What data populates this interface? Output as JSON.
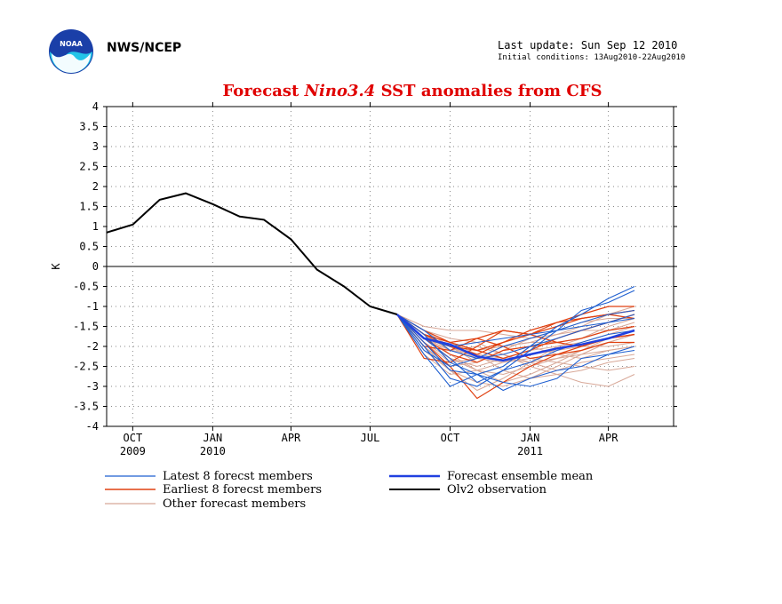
{
  "header": {
    "agency": "NWS/NCEP",
    "last_update": "Last update: Sun Sep 12 2010",
    "initial_conditions": "Initial conditions: 13Aug2010-22Aug2010"
  },
  "logo": {
    "icon": "noaa-logo-icon",
    "text": "NOAA"
  },
  "colors": {
    "title": "#e00000",
    "latest": "#1f5fd0",
    "earliest": "#e04010",
    "other": "#d8a898",
    "mean": "#2040e0",
    "observation": "#000000"
  },
  "chart_data": {
    "type": "line",
    "title_parts": [
      "Forecast ",
      "Nino3.4",
      " SST anomalies from CFS"
    ],
    "xlabel": "",
    "ylabel": "K",
    "ylim": [
      -4,
      4
    ],
    "yticks": [
      4,
      3.5,
      3,
      2.5,
      2,
      1.5,
      1,
      0.5,
      0,
      -0.5,
      -1,
      -1.5,
      -2,
      -2.5,
      -3,
      -3.5,
      -4
    ],
    "ytick_labels": [
      "4",
      "3.5",
      "3",
      "2.5",
      "2",
      "1.5",
      "1",
      "0.5",
      "0",
      "-0.5",
      "-1",
      "-1.5",
      "-2",
      "-2.5",
      "-3",
      "-3.5",
      "-4"
    ],
    "xlim": [
      "2009-09-01",
      "2011-06-15"
    ],
    "xticks": [
      {
        "x": "2009-10-01",
        "label": "OCT",
        "sublabel": "2009"
      },
      {
        "x": "2010-01-01",
        "label": "JAN",
        "sublabel": "2010"
      },
      {
        "x": "2010-04-01",
        "label": "APR",
        "sublabel": ""
      },
      {
        "x": "2010-07-01",
        "label": "JUL",
        "sublabel": ""
      },
      {
        "x": "2010-10-01",
        "label": "OCT",
        "sublabel": ""
      },
      {
        "x": "2011-01-01",
        "label": "JAN",
        "sublabel": "2011"
      },
      {
        "x": "2011-04-01",
        "label": "APR",
        "sublabel": ""
      }
    ],
    "grid": true,
    "legend_position": "below",
    "forecast_x": [
      "2010-08-01",
      "2010-09-01",
      "2010-10-01",
      "2010-11-01",
      "2010-12-01",
      "2011-01-01",
      "2011-02-01",
      "2011-03-01",
      "2011-04-01",
      "2011-05-01"
    ],
    "series": [
      {
        "name": "Olv2 observation",
        "role": "observation",
        "x": [
          "2009-09-01",
          "2009-10-01",
          "2009-11-01",
          "2009-12-01",
          "2010-01-01",
          "2010-02-01",
          "2010-03-01",
          "2010-04-01",
          "2010-05-01",
          "2010-06-01",
          "2010-07-01",
          "2010-08-01"
        ],
        "values": [
          0.85,
          1.05,
          1.67,
          1.83,
          1.56,
          1.25,
          1.17,
          0.68,
          -0.08,
          -0.5,
          -1.0,
          -1.2
        ]
      },
      {
        "name": "Forecast ensemble mean",
        "role": "mean",
        "values": [
          -1.2,
          -1.8,
          -1.95,
          -2.25,
          -2.35,
          -2.2,
          -2.05,
          -1.95,
          -1.8,
          -1.6
        ]
      },
      {
        "name": "Latest 8 forecst members",
        "role": "latest",
        "members": [
          [
            -1.2,
            -1.7,
            -2.4,
            -2.7,
            -2.5,
            -2.0,
            -1.5,
            -1.2,
            -0.8,
            -0.5
          ],
          [
            -1.2,
            -2.0,
            -2.8,
            -3.0,
            -2.6,
            -2.1,
            -1.6,
            -1.1,
            -0.9,
            -0.6
          ],
          [
            -1.2,
            -1.6,
            -2.1,
            -2.3,
            -2.0,
            -1.8,
            -1.6,
            -1.4,
            -1.2,
            -1.1
          ],
          [
            -1.2,
            -2.2,
            -3.0,
            -2.7,
            -3.1,
            -2.8,
            -2.6,
            -2.5,
            -2.2,
            -2.0
          ],
          [
            -1.2,
            -1.9,
            -2.6,
            -2.7,
            -2.9,
            -3.0,
            -2.8,
            -2.3,
            -2.2,
            -2.1
          ],
          [
            -1.2,
            -1.8,
            -2.3,
            -2.9,
            -2.6,
            -2.4,
            -2.1,
            -1.9,
            -1.7,
            -1.6
          ],
          [
            -1.2,
            -2.1,
            -2.5,
            -2.3,
            -2.2,
            -2.0,
            -1.8,
            -1.6,
            -1.4,
            -1.3
          ],
          [
            -1.2,
            -1.8,
            -2.0,
            -1.9,
            -1.8,
            -1.7,
            -1.6,
            -1.5,
            -1.4,
            -1.2
          ]
        ]
      },
      {
        "name": "Earliest 8 forecst members",
        "role": "earliest",
        "members": [
          [
            -1.2,
            -1.8,
            -2.0,
            -2.2,
            -1.9,
            -1.7,
            -1.4,
            -1.2,
            -1.0,
            -1.0
          ],
          [
            -1.2,
            -1.9,
            -2.5,
            -3.3,
            -2.9,
            -2.5,
            -2.2,
            -2.0,
            -1.8,
            -1.7
          ],
          [
            -1.2,
            -2.3,
            -2.4,
            -2.0,
            -1.6,
            -1.7,
            -1.5,
            -1.3,
            -1.2,
            -1.1
          ],
          [
            -1.2,
            -1.7,
            -1.9,
            -1.8,
            -1.6,
            -1.7,
            -1.9,
            -2.0,
            -1.8,
            -1.7
          ],
          [
            -1.2,
            -1.8,
            -2.2,
            -2.4,
            -2.1,
            -2.0,
            -1.9,
            -1.8,
            -1.6,
            -1.5
          ],
          [
            -1.2,
            -2.0,
            -2.1,
            -1.8,
            -2.0,
            -2.3,
            -2.2,
            -2.1,
            -1.9,
            -1.9
          ],
          [
            -1.2,
            -1.6,
            -1.9,
            -2.1,
            -2.3,
            -2.1,
            -1.8,
            -1.6,
            -1.4,
            -1.2
          ],
          [
            -1.2,
            -1.7,
            -2.0,
            -2.1,
            -1.9,
            -1.6,
            -1.4,
            -1.3,
            -1.2,
            -1.3
          ]
        ]
      },
      {
        "name": "Other forecast members",
        "role": "other",
        "members": [
          [
            -1.2,
            -1.5,
            -1.6,
            -1.6,
            -1.7,
            -1.8,
            -1.7,
            -1.5,
            -1.2,
            -1.0
          ],
          [
            -1.2,
            -1.7,
            -2.2,
            -2.6,
            -2.7,
            -2.5,
            -2.3,
            -2.2,
            -2.1,
            -2.0
          ],
          [
            -1.2,
            -1.9,
            -2.4,
            -2.3,
            -2.0,
            -1.9,
            -1.9,
            -1.8,
            -1.6,
            -1.5
          ],
          [
            -1.2,
            -2.1,
            -2.6,
            -2.9,
            -3.0,
            -2.8,
            -2.7,
            -2.9,
            -3.0,
            -2.7
          ],
          [
            -1.2,
            -1.6,
            -1.8,
            -1.9,
            -2.2,
            -2.4,
            -2.6,
            -2.4,
            -2.3,
            -2.2
          ],
          [
            -1.2,
            -1.8,
            -2.0,
            -2.4,
            -2.1,
            -1.8,
            -1.6,
            -1.4,
            -1.3,
            -1.3
          ],
          [
            -1.2,
            -2.0,
            -2.6,
            -3.1,
            -2.8,
            -2.4,
            -2.0,
            -1.9,
            -1.7,
            -1.5
          ],
          [
            -1.2,
            -1.7,
            -2.1,
            -2.0,
            -2.2,
            -2.5,
            -2.7,
            -2.6,
            -2.4,
            -2.3
          ],
          [
            -1.2,
            -1.6,
            -1.9,
            -2.2,
            -2.6,
            -2.8,
            -2.5,
            -2.2,
            -1.9,
            -1.7
          ],
          [
            -1.2,
            -1.8,
            -2.3,
            -2.5,
            -2.3,
            -2.1,
            -2.0,
            -1.8,
            -1.5,
            -1.3
          ],
          [
            -1.2,
            -2.2,
            -2.7,
            -2.6,
            -2.4,
            -2.3,
            -2.4,
            -2.5,
            -2.6,
            -2.5
          ],
          [
            -1.2,
            -1.7,
            -1.9,
            -2.1,
            -2.0,
            -1.9,
            -1.7,
            -1.6,
            -1.6,
            -1.4
          ],
          [
            -1.2,
            -1.9,
            -2.3,
            -2.6,
            -2.9,
            -2.7,
            -2.4,
            -2.1,
            -1.8,
            -1.6
          ],
          [
            -1.2,
            -1.6,
            -2.0,
            -2.3,
            -2.4,
            -2.2,
            -2.1,
            -2.0,
            -2.0,
            -1.9
          ],
          [
            -1.2,
            -2.0,
            -2.5,
            -2.4,
            -2.1,
            -2.0,
            -2.2,
            -2.3,
            -2.1,
            -2.0
          ],
          [
            -1.2,
            -1.8,
            -2.1,
            -2.2,
            -2.3,
            -2.4,
            -2.3,
            -2.1,
            -1.9,
            -1.7
          ]
        ]
      }
    ],
    "legend": [
      {
        "label": "Latest 8 forecst members",
        "role": "latest"
      },
      {
        "label": "Earliest 8 forecst members",
        "role": "earliest"
      },
      {
        "label": "Other forecast members",
        "role": "other"
      },
      {
        "label": "Forecast ensemble mean",
        "role": "mean"
      },
      {
        "label": "Olv2 observation",
        "role": "observation"
      }
    ]
  }
}
